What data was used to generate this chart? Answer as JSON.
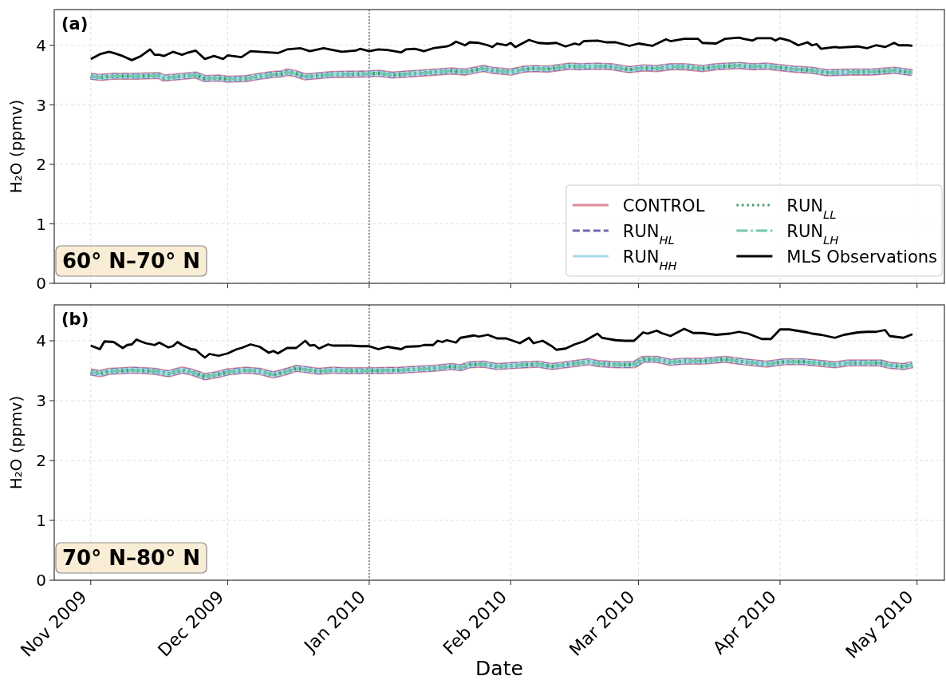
{
  "chart_data": [
    {
      "type": "line",
      "ylabel": "H₂O (ppmv)",
      "xlim": [
        "2009-10-24",
        "2010-05-07"
      ],
      "ylim": [
        0,
        4.6
      ],
      "xticks": [
        {
          "value": "2009-11-01",
          "label": null
        },
        {
          "value": "2009-12-01",
          "label": null
        },
        {
          "value": "2010-01-01",
          "label": null
        },
        {
          "value": "2010-02-01",
          "label": null
        },
        {
          "value": "2010-03-01",
          "label": null
        },
        {
          "value": "2010-04-01",
          "label": null
        },
        {
          "value": "2010-05-01",
          "label": null
        }
      ],
      "yticks": [
        0,
        1,
        2,
        3,
        4
      ],
      "grid": true,
      "legend": "bottom right",
      "tick_labels": "y",
      "ref_lines": [
        {
          "axis": "x",
          "value": "2010-01-01",
          "color": "#555555",
          "line_style": "dotted"
        }
      ],
      "annotations": [
        "(a)",
        "60° N–70° N"
      ],
      "x": [
        "2009-11-01",
        "2009-11-03",
        "2009-11-06",
        "2009-11-11",
        "2009-11-15",
        "2009-11-16",
        "2009-11-17",
        "2009-11-20",
        "2009-11-24",
        "2009-11-26",
        "2009-11-29",
        "2009-12-01",
        "2009-12-05",
        "2009-12-08",
        "2009-12-11",
        "2009-12-13",
        "2009-12-14",
        "2009-12-16",
        "2009-12-18",
        "2009-12-21",
        "2009-12-24",
        "2010-01-01",
        "2010-01-03",
        "2010-01-06",
        "2010-01-12",
        "2010-01-19",
        "2010-01-22",
        "2010-01-26",
        "2010-01-28",
        "2010-02-01",
        "2010-02-04",
        "2010-02-06",
        "2010-02-09",
        "2010-02-14",
        "2010-02-16",
        "2010-02-20",
        "2010-02-23",
        "2010-02-27",
        "2010-03-02",
        "2010-03-05",
        "2010-03-08",
        "2010-03-11",
        "2010-03-15",
        "2010-03-18",
        "2010-03-23",
        "2010-03-26",
        "2010-03-29",
        "2010-04-04",
        "2010-04-08",
        "2010-04-11",
        "2010-04-16",
        "2010-04-21",
        "2010-04-26",
        "2010-04-30"
      ],
      "series": [
        {
          "name": "CONTROL",
          "color": "#dd8c99",
          "line_style": "solid",
          "values": [
            3.48,
            3.46,
            3.48,
            3.48,
            3.49,
            3.49,
            3.45,
            3.47,
            3.5,
            3.44,
            3.45,
            3.43,
            3.44,
            3.48,
            3.51,
            3.52,
            3.55,
            3.52,
            3.47,
            3.49,
            3.51,
            3.52,
            3.53,
            3.5,
            3.53,
            3.57,
            3.55,
            3.61,
            3.58,
            3.55,
            3.6,
            3.61,
            3.6,
            3.65,
            3.64,
            3.65,
            3.64,
            3.59,
            3.62,
            3.61,
            3.64,
            3.64,
            3.61,
            3.64,
            3.66,
            3.64,
            3.65,
            3.6,
            3.58,
            3.54,
            3.55,
            3.55,
            3.58,
            3.54
          ]
        },
        {
          "name": "RUN$_{HL}$",
          "color": "#7168b0",
          "line_style": "dashed",
          "values": [
            3.48,
            3.46,
            3.48,
            3.48,
            3.49,
            3.49,
            3.45,
            3.47,
            3.5,
            3.44,
            3.45,
            3.43,
            3.44,
            3.48,
            3.51,
            3.52,
            3.55,
            3.52,
            3.47,
            3.49,
            3.51,
            3.52,
            3.53,
            3.5,
            3.53,
            3.57,
            3.55,
            3.61,
            3.58,
            3.55,
            3.6,
            3.61,
            3.6,
            3.65,
            3.64,
            3.65,
            3.64,
            3.59,
            3.62,
            3.61,
            3.64,
            3.64,
            3.61,
            3.64,
            3.66,
            3.64,
            3.65,
            3.6,
            3.58,
            3.54,
            3.55,
            3.55,
            3.58,
            3.54
          ]
        },
        {
          "name": "RUN$_{HH}$",
          "color": "#a8daef",
          "line_style": "solid",
          "values": [
            3.48,
            3.46,
            3.48,
            3.48,
            3.49,
            3.49,
            3.45,
            3.47,
            3.5,
            3.44,
            3.45,
            3.43,
            3.44,
            3.48,
            3.51,
            3.52,
            3.55,
            3.52,
            3.47,
            3.49,
            3.51,
            3.52,
            3.53,
            3.5,
            3.53,
            3.57,
            3.55,
            3.61,
            3.58,
            3.55,
            3.6,
            3.61,
            3.6,
            3.65,
            3.64,
            3.65,
            3.64,
            3.59,
            3.62,
            3.61,
            3.64,
            3.64,
            3.61,
            3.64,
            3.66,
            3.64,
            3.65,
            3.6,
            3.58,
            3.54,
            3.55,
            3.55,
            3.58,
            3.54
          ]
        },
        {
          "name": "RUN$_{LL}$",
          "color": "#3f9c64",
          "line_style": "dotted",
          "values": [
            3.48,
            3.46,
            3.48,
            3.48,
            3.49,
            3.49,
            3.45,
            3.47,
            3.5,
            3.44,
            3.45,
            3.43,
            3.44,
            3.48,
            3.51,
            3.52,
            3.55,
            3.52,
            3.47,
            3.49,
            3.51,
            3.52,
            3.53,
            3.5,
            3.53,
            3.57,
            3.55,
            3.61,
            3.58,
            3.55,
            3.6,
            3.61,
            3.6,
            3.65,
            3.64,
            3.65,
            3.64,
            3.59,
            3.62,
            3.61,
            3.64,
            3.64,
            3.61,
            3.64,
            3.66,
            3.64,
            3.65,
            3.6,
            3.58,
            3.54,
            3.55,
            3.55,
            3.58,
            3.54
          ]
        },
        {
          "name": "RUN$_{LH}$",
          "color": "#74c5ae",
          "line_style": "dashdot",
          "values": [
            3.48,
            3.46,
            3.48,
            3.48,
            3.49,
            3.49,
            3.45,
            3.47,
            3.5,
            3.44,
            3.45,
            3.43,
            3.44,
            3.48,
            3.51,
            3.52,
            3.55,
            3.52,
            3.47,
            3.49,
            3.51,
            3.52,
            3.53,
            3.5,
            3.53,
            3.57,
            3.55,
            3.61,
            3.58,
            3.55,
            3.6,
            3.61,
            3.6,
            3.65,
            3.64,
            3.65,
            3.64,
            3.59,
            3.62,
            3.61,
            3.64,
            3.64,
            3.61,
            3.64,
            3.66,
            3.64,
            3.65,
            3.6,
            3.58,
            3.54,
            3.55,
            3.55,
            3.58,
            3.54
          ]
        },
        {
          "name": "MLS Observations",
          "color": "#000000",
          "line_style": "solid",
          "x": [
            "2009-11-01",
            "2009-11-03",
            "2009-11-05",
            "2009-11-06",
            "2009-11-08",
            "2009-11-10",
            "2009-11-12",
            "2009-11-14",
            "2009-11-15",
            "2009-11-16",
            "2009-11-17",
            "2009-11-19",
            "2009-11-21",
            "2009-11-22",
            "2009-11-24",
            "2009-11-26",
            "2009-11-28",
            "2009-11-30",
            "2009-12-01",
            "2009-12-04",
            "2009-12-06",
            "2009-12-10",
            "2009-12-12",
            "2009-12-14",
            "2009-12-17",
            "2009-12-19",
            "2009-12-22",
            "2009-12-26",
            "2009-12-29",
            "2009-12-30",
            "2010-01-01",
            "2010-01-03",
            "2010-01-05",
            "2010-01-08",
            "2010-01-09",
            "2010-01-11",
            "2010-01-13",
            "2010-01-15",
            "2010-01-18",
            "2010-01-19",
            "2010-01-20",
            "2010-01-22",
            "2010-01-23",
            "2010-01-25",
            "2010-01-27",
            "2010-01-28",
            "2010-01-29",
            "2010-01-31",
            "2010-02-01",
            "2010-02-02",
            "2010-02-05",
            "2010-02-07",
            "2010-02-09",
            "2010-02-11",
            "2010-02-12",
            "2010-02-13",
            "2010-02-15",
            "2010-02-16",
            "2010-02-17",
            "2010-02-20",
            "2010-02-22",
            "2010-02-24",
            "2010-02-27",
            "2010-03-01",
            "2010-03-04",
            "2010-03-07",
            "2010-03-08",
            "2010-03-11",
            "2010-03-14",
            "2010-03-15",
            "2010-03-18",
            "2010-03-20",
            "2010-03-23",
            "2010-03-24",
            "2010-03-26",
            "2010-03-27",
            "2010-03-30",
            "2010-03-31",
            "2010-04-01",
            "2010-04-03",
            "2010-04-05",
            "2010-04-07",
            "2010-04-08",
            "2010-04-09",
            "2010-04-10",
            "2010-04-13",
            "2010-04-14",
            "2010-04-18",
            "2010-04-20",
            "2010-04-22",
            "2010-04-24",
            "2010-04-26",
            "2010-04-27",
            "2010-04-29",
            "2010-04-30"
          ],
          "values": [
            3.77,
            3.85,
            3.89,
            3.87,
            3.82,
            3.75,
            3.82,
            3.93,
            3.84,
            3.84,
            3.82,
            3.89,
            3.84,
            3.87,
            3.91,
            3.77,
            3.82,
            3.77,
            3.83,
            3.8,
            3.9,
            3.88,
            3.87,
            3.93,
            3.95,
            3.9,
            3.95,
            3.89,
            3.91,
            3.94,
            3.9,
            3.93,
            3.92,
            3.88,
            3.93,
            3.94,
            3.9,
            3.95,
            3.98,
            4.01,
            4.06,
            4.0,
            4.05,
            4.04,
            4.0,
            3.97,
            4.03,
            4.0,
            4.04,
            3.97,
            4.09,
            4.04,
            4.03,
            4.04,
            4.01,
            3.98,
            4.03,
            4.01,
            4.07,
            4.08,
            4.05,
            4.05,
            3.99,
            4.03,
            3.99,
            4.1,
            4.07,
            4.11,
            4.11,
            4.04,
            4.03,
            4.11,
            4.13,
            4.11,
            4.08,
            4.12,
            4.12,
            4.08,
            4.12,
            4.08,
            4.0,
            4.05,
            4.0,
            4.02,
            3.94,
            3.97,
            3.96,
            3.98,
            3.95,
            4.0,
            3.97,
            4.04,
            4.0,
            4.0,
            3.99
          ]
        }
      ]
    },
    {
      "type": "line",
      "xlabel": "Date",
      "ylabel": "H₂O (ppmv)",
      "xlim": [
        "2009-10-24",
        "2010-05-07"
      ],
      "ylim": [
        0,
        4.6
      ],
      "xticks": [
        {
          "value": "2009-11-01",
          "label": "Nov 2009"
        },
        {
          "value": "2009-12-01",
          "label": "Dec 2009"
        },
        {
          "value": "2010-01-01",
          "label": "Jan 2010"
        },
        {
          "value": "2010-02-01",
          "label": "Feb 2010"
        },
        {
          "value": "2010-03-01",
          "label": "Mar 2010"
        },
        {
          "value": "2010-04-01",
          "label": "Apr 2010"
        },
        {
          "value": "2010-05-01",
          "label": "May 2010"
        }
      ],
      "yticks": [
        0,
        1,
        2,
        3,
        4
      ],
      "grid": true,
      "ref_lines": [
        {
          "axis": "x",
          "value": "2010-01-01",
          "color": "#555555",
          "line_style": "dotted"
        }
      ],
      "annotations": [
        "(b)",
        "70° N–80° N"
      ],
      "x": [
        "2009-11-01",
        "2009-11-03",
        "2009-11-05",
        "2009-11-08",
        "2009-11-10",
        "2009-11-13",
        "2009-11-15",
        "2009-11-18",
        "2009-11-21",
        "2009-11-23",
        "2009-11-26",
        "2009-11-29",
        "2009-12-01",
        "2009-12-05",
        "2009-12-08",
        "2009-12-11",
        "2009-12-14",
        "2009-12-16",
        "2009-12-18",
        "2009-12-21",
        "2009-12-24",
        "2009-12-27",
        "2010-01-01",
        "2010-01-08",
        "2010-01-15",
        "2010-01-19",
        "2010-01-21",
        "2010-01-23",
        "2010-01-26",
        "2010-01-29",
        "2010-02-02",
        "2010-02-07",
        "2010-02-10",
        "2010-02-13",
        "2010-02-18",
        "2010-02-20",
        "2010-02-24",
        "2010-02-28",
        "2010-03-02",
        "2010-03-05",
        "2010-03-08",
        "2010-03-11",
        "2010-03-15",
        "2010-03-20",
        "2010-03-24",
        "2010-03-29",
        "2010-04-02",
        "2010-04-06",
        "2010-04-13",
        "2010-04-16",
        "2010-04-23",
        "2010-04-25",
        "2010-04-28",
        "2010-04-30"
      ],
      "series": [
        {
          "color": "#dd8c99",
          "line_style": "solid",
          "values": [
            3.48,
            3.45,
            3.49,
            3.5,
            3.51,
            3.5,
            3.49,
            3.45,
            3.51,
            3.48,
            3.4,
            3.44,
            3.48,
            3.51,
            3.49,
            3.43,
            3.49,
            3.54,
            3.52,
            3.49,
            3.51,
            3.5,
            3.5,
            3.51,
            3.54,
            3.57,
            3.55,
            3.6,
            3.61,
            3.57,
            3.59,
            3.61,
            3.57,
            3.6,
            3.65,
            3.62,
            3.6,
            3.6,
            3.69,
            3.69,
            3.64,
            3.66,
            3.66,
            3.69,
            3.65,
            3.61,
            3.65,
            3.65,
            3.6,
            3.63,
            3.63,
            3.59,
            3.57,
            3.6
          ]
        },
        {
          "color": "#7168b0",
          "line_style": "dashed",
          "values": [
            3.48,
            3.45,
            3.49,
            3.5,
            3.51,
            3.5,
            3.49,
            3.45,
            3.51,
            3.48,
            3.4,
            3.44,
            3.48,
            3.51,
            3.49,
            3.43,
            3.49,
            3.54,
            3.52,
            3.49,
            3.51,
            3.5,
            3.5,
            3.51,
            3.54,
            3.57,
            3.55,
            3.6,
            3.61,
            3.57,
            3.59,
            3.61,
            3.57,
            3.6,
            3.65,
            3.62,
            3.6,
            3.6,
            3.69,
            3.69,
            3.64,
            3.66,
            3.66,
            3.69,
            3.65,
            3.61,
            3.65,
            3.65,
            3.6,
            3.63,
            3.63,
            3.59,
            3.57,
            3.6
          ]
        },
        {
          "color": "#a8daef",
          "line_style": "solid",
          "values": [
            3.48,
            3.45,
            3.49,
            3.5,
            3.51,
            3.5,
            3.49,
            3.45,
            3.51,
            3.48,
            3.4,
            3.44,
            3.48,
            3.51,
            3.49,
            3.43,
            3.49,
            3.54,
            3.52,
            3.49,
            3.51,
            3.5,
            3.5,
            3.51,
            3.54,
            3.57,
            3.55,
            3.6,
            3.61,
            3.57,
            3.59,
            3.61,
            3.57,
            3.6,
            3.65,
            3.62,
            3.6,
            3.6,
            3.69,
            3.69,
            3.64,
            3.66,
            3.66,
            3.69,
            3.65,
            3.61,
            3.65,
            3.65,
            3.6,
            3.63,
            3.63,
            3.59,
            3.57,
            3.6
          ]
        },
        {
          "color": "#3f9c64",
          "line_style": "dotted",
          "values": [
            3.48,
            3.45,
            3.49,
            3.5,
            3.51,
            3.5,
            3.49,
            3.45,
            3.51,
            3.48,
            3.4,
            3.44,
            3.48,
            3.51,
            3.49,
            3.43,
            3.49,
            3.54,
            3.52,
            3.49,
            3.51,
            3.5,
            3.5,
            3.51,
            3.54,
            3.57,
            3.55,
            3.6,
            3.61,
            3.57,
            3.59,
            3.61,
            3.57,
            3.6,
            3.65,
            3.62,
            3.6,
            3.6,
            3.69,
            3.69,
            3.64,
            3.66,
            3.66,
            3.69,
            3.65,
            3.61,
            3.65,
            3.65,
            3.6,
            3.63,
            3.63,
            3.59,
            3.57,
            3.6
          ]
        },
        {
          "color": "#74c5ae",
          "line_style": "dashdot",
          "values": [
            3.48,
            3.45,
            3.49,
            3.5,
            3.51,
            3.5,
            3.49,
            3.45,
            3.51,
            3.48,
            3.4,
            3.44,
            3.48,
            3.51,
            3.49,
            3.43,
            3.49,
            3.54,
            3.52,
            3.49,
            3.51,
            3.5,
            3.5,
            3.51,
            3.54,
            3.57,
            3.55,
            3.6,
            3.61,
            3.57,
            3.59,
            3.61,
            3.57,
            3.6,
            3.65,
            3.62,
            3.6,
            3.6,
            3.69,
            3.69,
            3.64,
            3.66,
            3.66,
            3.69,
            3.65,
            3.61,
            3.65,
            3.65,
            3.6,
            3.63,
            3.63,
            3.59,
            3.57,
            3.6
          ]
        },
        {
          "color": "#000000",
          "line_style": "solid",
          "x": [
            "2009-11-01",
            "2009-11-03",
            "2009-11-04",
            "2009-11-06",
            "2009-11-08",
            "2009-11-09",
            "2009-11-10",
            "2009-11-11",
            "2009-11-13",
            "2009-11-15",
            "2009-11-16",
            "2009-11-18",
            "2009-11-19",
            "2009-11-20",
            "2009-11-21",
            "2009-11-23",
            "2009-11-24",
            "2009-11-25",
            "2009-11-26",
            "2009-11-27",
            "2009-11-29",
            "2009-12-01",
            "2009-12-03",
            "2009-12-04",
            "2009-12-06",
            "2009-12-08",
            "2009-12-10",
            "2009-12-11",
            "2009-12-12",
            "2009-12-14",
            "2009-12-16",
            "2009-12-18",
            "2009-12-19",
            "2009-12-20",
            "2009-12-21",
            "2009-12-23",
            "2009-12-24",
            "2009-12-28",
            "2009-12-30",
            "2010-01-01",
            "2010-01-03",
            "2010-01-05",
            "2010-01-08",
            "2010-01-09",
            "2010-01-12",
            "2010-01-13",
            "2010-01-15",
            "2010-01-16",
            "2010-01-17",
            "2010-01-18",
            "2010-01-20",
            "2010-01-21",
            "2010-01-24",
            "2010-01-25",
            "2010-01-27",
            "2010-01-29",
            "2010-01-31",
            "2010-02-03",
            "2010-02-05",
            "2010-02-06",
            "2010-02-08",
            "2010-02-10",
            "2010-02-11",
            "2010-02-13",
            "2010-02-15",
            "2010-02-17",
            "2010-02-20",
            "2010-02-21",
            "2010-02-24",
            "2010-02-26",
            "2010-02-28",
            "2010-03-02",
            "2010-03-03",
            "2010-03-05",
            "2010-03-06",
            "2010-03-08",
            "2010-03-11",
            "2010-03-13",
            "2010-03-15",
            "2010-03-18",
            "2010-03-21",
            "2010-03-23",
            "2010-03-25",
            "2010-03-28",
            "2010-03-30",
            "2010-04-01",
            "2010-04-03",
            "2010-04-07",
            "2010-04-08",
            "2010-04-10",
            "2010-04-13",
            "2010-04-15",
            "2010-04-18",
            "2010-04-20",
            "2010-04-22",
            "2010-04-24",
            "2010-04-25",
            "2010-04-28",
            "2010-04-30"
          ],
          "values": [
            3.92,
            3.86,
            3.99,
            3.98,
            3.88,
            3.93,
            3.94,
            4.02,
            3.96,
            3.93,
            3.97,
            3.89,
            3.91,
            3.98,
            3.93,
            3.86,
            3.85,
            3.78,
            3.72,
            3.78,
            3.75,
            3.79,
            3.86,
            3.88,
            3.94,
            3.9,
            3.8,
            3.83,
            3.79,
            3.88,
            3.88,
            4.0,
            3.92,
            3.93,
            3.87,
            3.94,
            3.92,
            3.92,
            3.91,
            3.91,
            3.86,
            3.9,
            3.86,
            3.9,
            3.91,
            3.93,
            3.93,
            4.0,
            3.98,
            4.01,
            3.97,
            4.05,
            4.09,
            4.07,
            4.1,
            4.04,
            4.04,
            3.96,
            4.05,
            3.96,
            4.0,
            3.91,
            3.85,
            3.87,
            3.94,
            3.99,
            4.12,
            4.05,
            4.01,
            4.0,
            4.0,
            4.14,
            4.12,
            4.17,
            4.13,
            4.08,
            4.2,
            4.13,
            4.13,
            4.1,
            4.12,
            4.15,
            4.12,
            4.03,
            4.03,
            4.19,
            4.19,
            4.14,
            4.12,
            4.1,
            4.05,
            4.1,
            4.14,
            4.15,
            4.15,
            4.18,
            4.08,
            4.05,
            4.11
          ]
        }
      ]
    }
  ]
}
